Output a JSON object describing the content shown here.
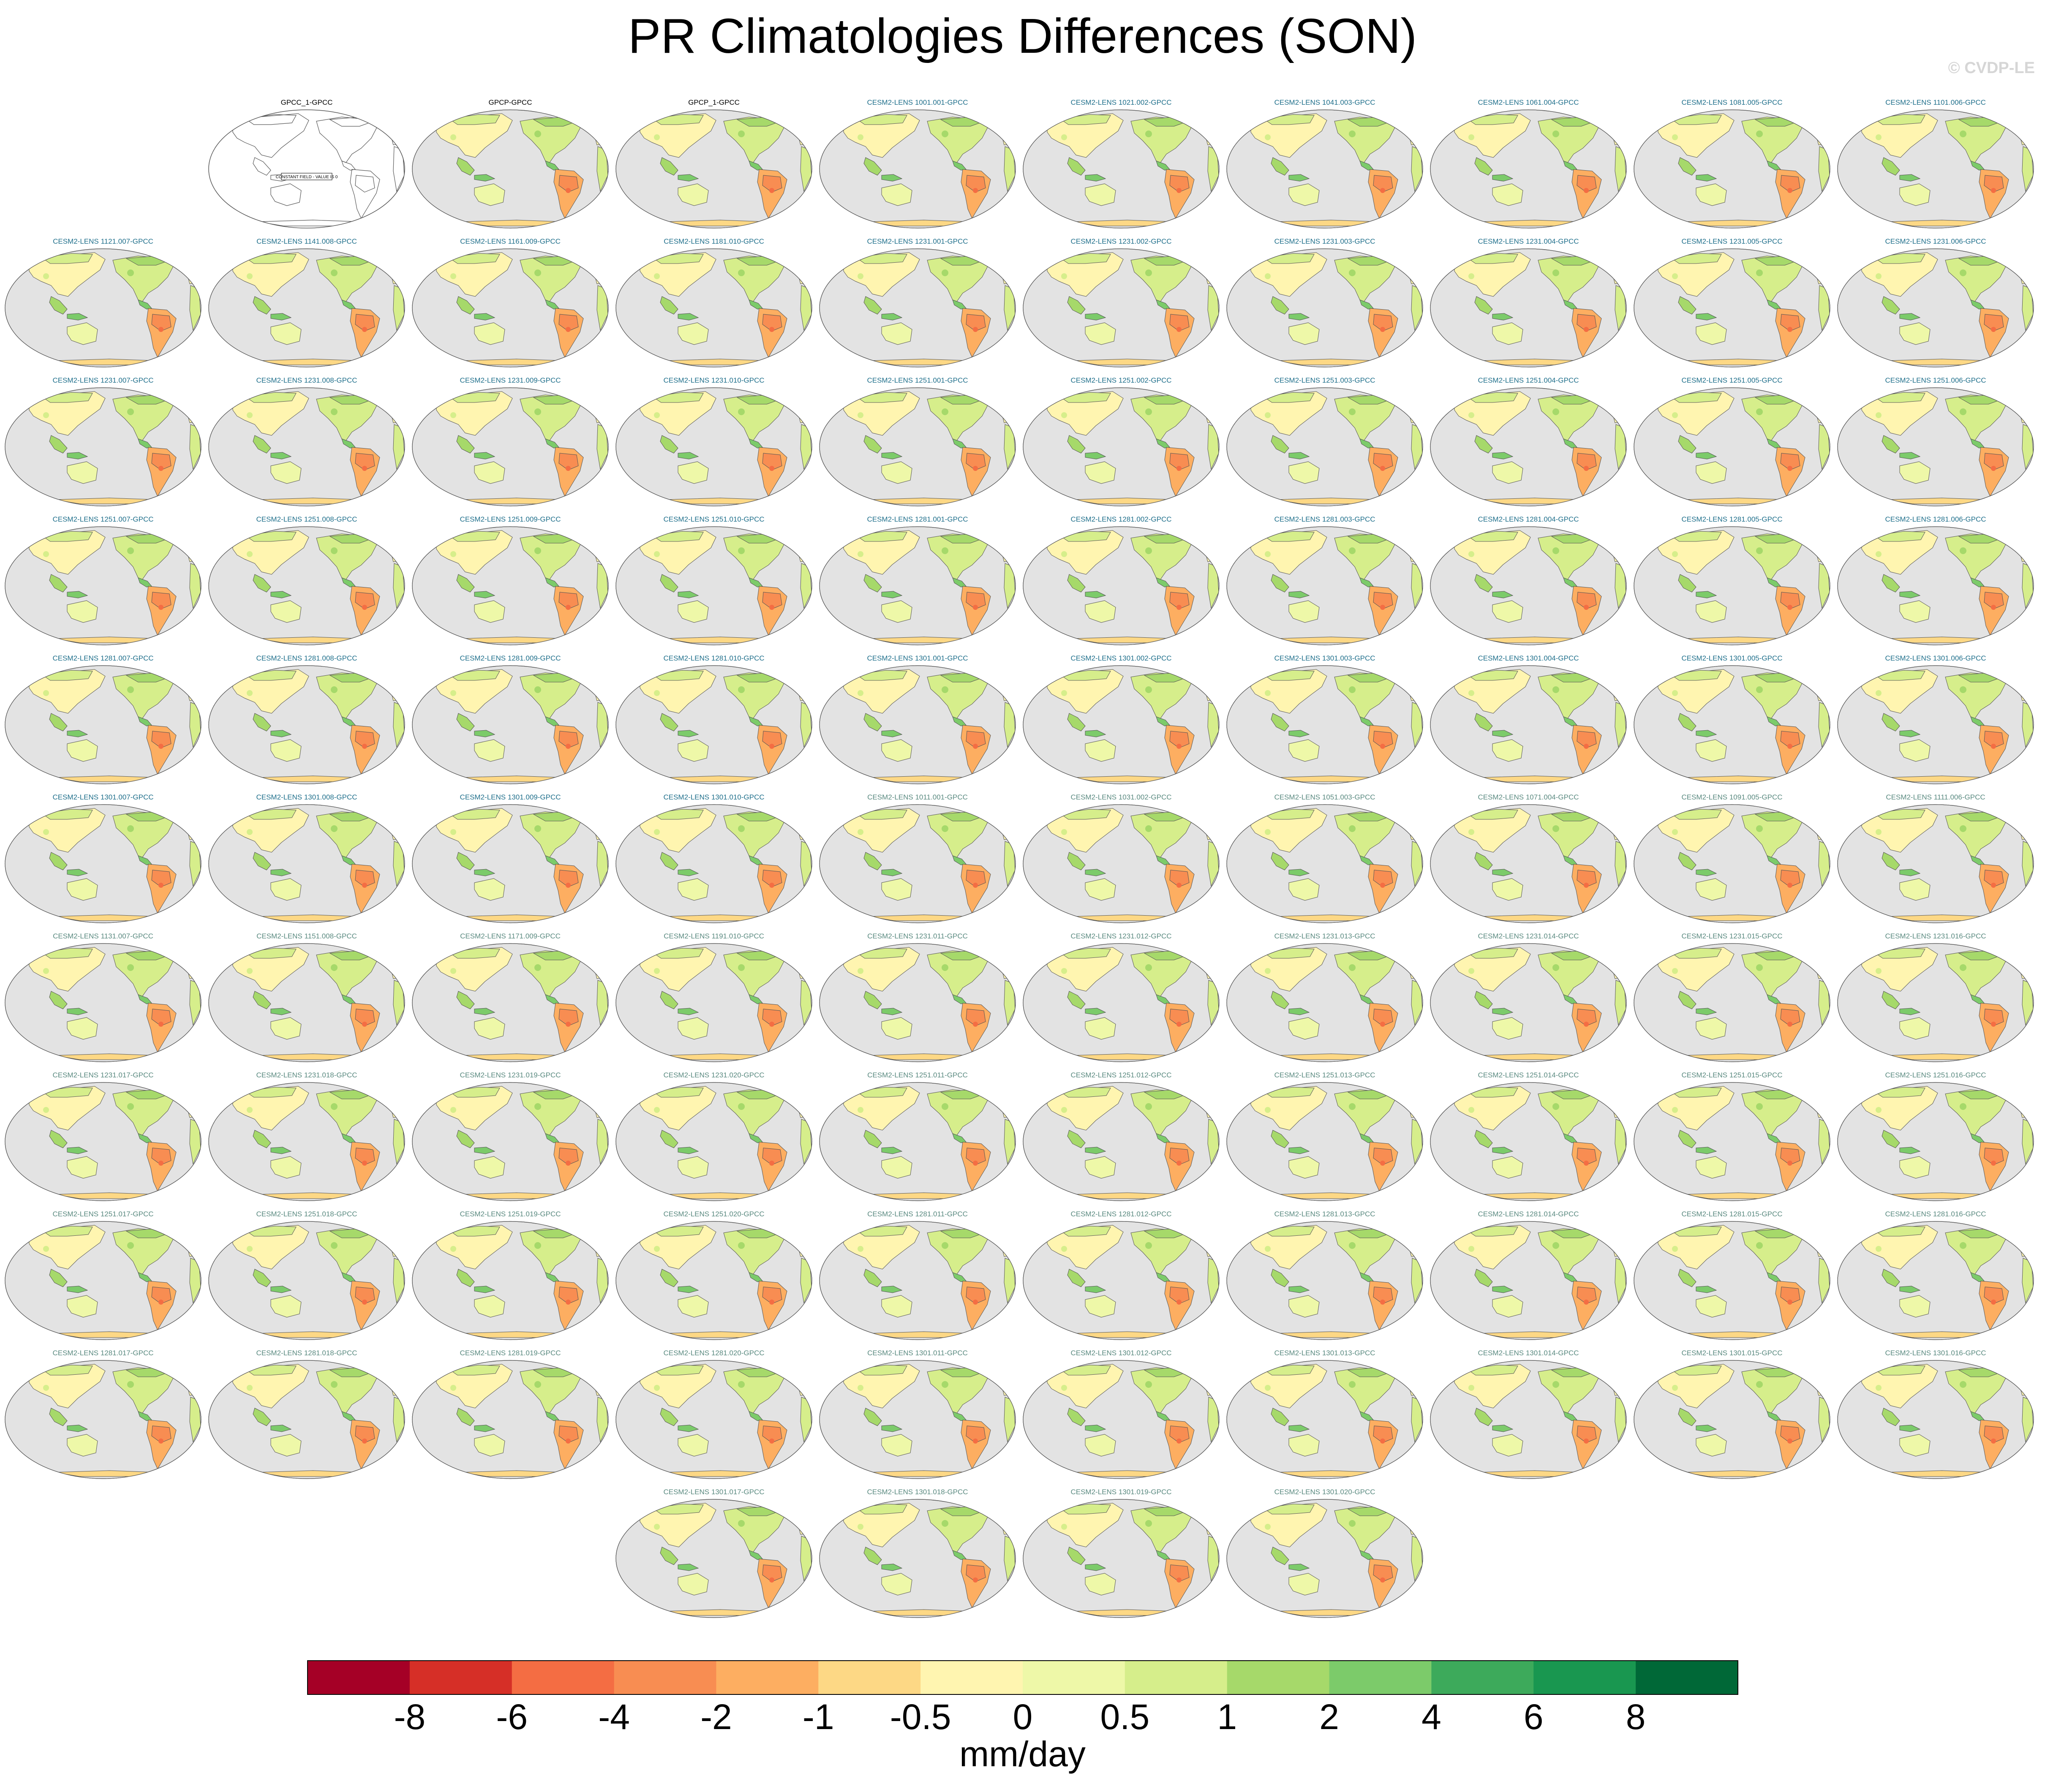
{
  "title": "PR Climatologies Differences (SON)",
  "watermark": "© CVDP-LE",
  "colors": {
    "ocean": "#e3e3e3",
    "coast": "#555555",
    "obs_label": "#000000",
    "group1_label": "#1f6f8b",
    "group2_label": "#5a8a80"
  },
  "chart_data": {
    "type": "heatmap",
    "variable": "PR",
    "season": "SON",
    "title": "PR Climatologies Differences (SON)",
    "map_projection": "Robinson",
    "constant_field_note": "CONSTANT FIELD - VALUE IS 0",
    "colorbar": {
      "units": "mm/day",
      "tick_labels": [
        "-8",
        "-6",
        "-4",
        "-2",
        "-1",
        "-0.5",
        "0",
        "0.5",
        "1",
        "2",
        "4",
        "6",
        "8"
      ],
      "colors": [
        "#a50026",
        "#d62f27",
        "#f46d43",
        "#f88d52",
        "#fdae61",
        "#fdd885",
        "#fff5b0",
        "#eef8a8",
        "#d6ee8b",
        "#a6d96a",
        "#7ccb6a",
        "#3daa5b",
        "#199750",
        "#006837"
      ]
    },
    "panels": [
      {
        "label": "GPCC_1-GPCC",
        "group": "obs",
        "constant": true
      },
      {
        "label": "GPCP-GPCC",
        "group": "obs"
      },
      {
        "label": "GPCP_1-GPCC",
        "group": "obs"
      },
      {
        "label": "CESM2-LENS 1001.001-GPCC",
        "group": "g1"
      },
      {
        "label": "CESM2-LENS 1021.002-GPCC",
        "group": "g1"
      },
      {
        "label": "CESM2-LENS 1041.003-GPCC",
        "group": "g1"
      },
      {
        "label": "CESM2-LENS 1061.004-GPCC",
        "group": "g1"
      },
      {
        "label": "CESM2-LENS 1081.005-GPCC",
        "group": "g1"
      },
      {
        "label": "CESM2-LENS 1101.006-GPCC",
        "group": "g1"
      },
      {
        "label": "CESM2-LENS 1121.007-GPCC",
        "group": "g1"
      },
      {
        "label": "CESM2-LENS 1141.008-GPCC",
        "group": "g1"
      },
      {
        "label": "CESM2-LENS 1161.009-GPCC",
        "group": "g1"
      },
      {
        "label": "CESM2-LENS 1181.010-GPCC",
        "group": "g1"
      },
      {
        "label": "CESM2-LENS 1231.001-GPCC",
        "group": "g1"
      },
      {
        "label": "CESM2-LENS 1231.002-GPCC",
        "group": "g1"
      },
      {
        "label": "CESM2-LENS 1231.003-GPCC",
        "group": "g1"
      },
      {
        "label": "CESM2-LENS 1231.004-GPCC",
        "group": "g1"
      },
      {
        "label": "CESM2-LENS 1231.005-GPCC",
        "group": "g1"
      },
      {
        "label": "CESM2-LENS 1231.006-GPCC",
        "group": "g1"
      },
      {
        "label": "CESM2-LENS 1231.007-GPCC",
        "group": "g1"
      },
      {
        "label": "CESM2-LENS 1231.008-GPCC",
        "group": "g1"
      },
      {
        "label": "CESM2-LENS 1231.009-GPCC",
        "group": "g1"
      },
      {
        "label": "CESM2-LENS 1231.010-GPCC",
        "group": "g1"
      },
      {
        "label": "CESM2-LENS 1251.001-GPCC",
        "group": "g1"
      },
      {
        "label": "CESM2-LENS 1251.002-GPCC",
        "group": "g1"
      },
      {
        "label": "CESM2-LENS 1251.003-GPCC",
        "group": "g1"
      },
      {
        "label": "CESM2-LENS 1251.004-GPCC",
        "group": "g1"
      },
      {
        "label": "CESM2-LENS 1251.005-GPCC",
        "group": "g1"
      },
      {
        "label": "CESM2-LENS 1251.006-GPCC",
        "group": "g1"
      },
      {
        "label": "CESM2-LENS 1251.007-GPCC",
        "group": "g1"
      },
      {
        "label": "CESM2-LENS 1251.008-GPCC",
        "group": "g1"
      },
      {
        "label": "CESM2-LENS 1251.009-GPCC",
        "group": "g1"
      },
      {
        "label": "CESM2-LENS 1251.010-GPCC",
        "group": "g1"
      },
      {
        "label": "CESM2-LENS 1281.001-GPCC",
        "group": "g1"
      },
      {
        "label": "CESM2-LENS 1281.002-GPCC",
        "group": "g1"
      },
      {
        "label": "CESM2-LENS 1281.003-GPCC",
        "group": "g1"
      },
      {
        "label": "CESM2-LENS 1281.004-GPCC",
        "group": "g1"
      },
      {
        "label": "CESM2-LENS 1281.005-GPCC",
        "group": "g1"
      },
      {
        "label": "CESM2-LENS 1281.006-GPCC",
        "group": "g1"
      },
      {
        "label": "CESM2-LENS 1281.007-GPCC",
        "group": "g1"
      },
      {
        "label": "CESM2-LENS 1281.008-GPCC",
        "group": "g1"
      },
      {
        "label": "CESM2-LENS 1281.009-GPCC",
        "group": "g1"
      },
      {
        "label": "CESM2-LENS 1281.010-GPCC",
        "group": "g1"
      },
      {
        "label": "CESM2-LENS 1301.001-GPCC",
        "group": "g1"
      },
      {
        "label": "CESM2-LENS 1301.002-GPCC",
        "group": "g1"
      },
      {
        "label": "CESM2-LENS 1301.003-GPCC",
        "group": "g1"
      },
      {
        "label": "CESM2-LENS 1301.004-GPCC",
        "group": "g1"
      },
      {
        "label": "CESM2-LENS 1301.005-GPCC",
        "group": "g1"
      },
      {
        "label": "CESM2-LENS 1301.006-GPCC",
        "group": "g1"
      },
      {
        "label": "CESM2-LENS 1301.007-GPCC",
        "group": "g1"
      },
      {
        "label": "CESM2-LENS 1301.008-GPCC",
        "group": "g1"
      },
      {
        "label": "CESM2-LENS 1301.009-GPCC",
        "group": "g1"
      },
      {
        "label": "CESM2-LENS 1301.010-GPCC",
        "group": "g1"
      },
      {
        "label": "CESM2-LENS 1011.001-GPCC",
        "group": "g2"
      },
      {
        "label": "CESM2-LENS 1031.002-GPCC",
        "group": "g2"
      },
      {
        "label": "CESM2-LENS 1051.003-GPCC",
        "group": "g2"
      },
      {
        "label": "CESM2-LENS 1071.004-GPCC",
        "group": "g2"
      },
      {
        "label": "CESM2-LENS 1091.005-GPCC",
        "group": "g2"
      },
      {
        "label": "CESM2-LENS 1111.006-GPCC",
        "group": "g2"
      },
      {
        "label": "CESM2-LENS 1131.007-GPCC",
        "group": "g2"
      },
      {
        "label": "CESM2-LENS 1151.008-GPCC",
        "group": "g2"
      },
      {
        "label": "CESM2-LENS 1171.009-GPCC",
        "group": "g2"
      },
      {
        "label": "CESM2-LENS 1191.010-GPCC",
        "group": "g2"
      },
      {
        "label": "CESM2-LENS 1231.011-GPCC",
        "group": "g2"
      },
      {
        "label": "CESM2-LENS 1231.012-GPCC",
        "group": "g2"
      },
      {
        "label": "CESM2-LENS 1231.013-GPCC",
        "group": "g2"
      },
      {
        "label": "CESM2-LENS 1231.014-GPCC",
        "group": "g2"
      },
      {
        "label": "CESM2-LENS 1231.015-GPCC",
        "group": "g2"
      },
      {
        "label": "CESM2-LENS 1231.016-GPCC",
        "group": "g2"
      },
      {
        "label": "CESM2-LENS 1231.017-GPCC",
        "group": "g2"
      },
      {
        "label": "CESM2-LENS 1231.018-GPCC",
        "group": "g2"
      },
      {
        "label": "CESM2-LENS 1231.019-GPCC",
        "group": "g2"
      },
      {
        "label": "CESM2-LENS 1231.020-GPCC",
        "group": "g2"
      },
      {
        "label": "CESM2-LENS 1251.011-GPCC",
        "group": "g2"
      },
      {
        "label": "CESM2-LENS 1251.012-GPCC",
        "group": "g2"
      },
      {
        "label": "CESM2-LENS 1251.013-GPCC",
        "group": "g2"
      },
      {
        "label": "CESM2-LENS 1251.014-GPCC",
        "group": "g2"
      },
      {
        "label": "CESM2-LENS 1251.015-GPCC",
        "group": "g2"
      },
      {
        "label": "CESM2-LENS 1251.016-GPCC",
        "group": "g2"
      },
      {
        "label": "CESM2-LENS 1251.017-GPCC",
        "group": "g2"
      },
      {
        "label": "CESM2-LENS 1251.018-GPCC",
        "group": "g2"
      },
      {
        "label": "CESM2-LENS 1251.019-GPCC",
        "group": "g2"
      },
      {
        "label": "CESM2-LENS 1251.020-GPCC",
        "group": "g2"
      },
      {
        "label": "CESM2-LENS 1281.011-GPCC",
        "group": "g2"
      },
      {
        "label": "CESM2-LENS 1281.012-GPCC",
        "group": "g2"
      },
      {
        "label": "CESM2-LENS 1281.013-GPCC",
        "group": "g2"
      },
      {
        "label": "CESM2-LENS 1281.014-GPCC",
        "group": "g2"
      },
      {
        "label": "CESM2-LENS 1281.015-GPCC",
        "group": "g2"
      },
      {
        "label": "CESM2-LENS 1281.016-GPCC",
        "group": "g2"
      },
      {
        "label": "CESM2-LENS 1281.017-GPCC",
        "group": "g2"
      },
      {
        "label": "CESM2-LENS 1281.018-GPCC",
        "group": "g2"
      },
      {
        "label": "CESM2-LENS 1281.019-GPCC",
        "group": "g2"
      },
      {
        "label": "CESM2-LENS 1281.020-GPCC",
        "group": "g2"
      },
      {
        "label": "CESM2-LENS 1301.011-GPCC",
        "group": "g2"
      },
      {
        "label": "CESM2-LENS 1301.012-GPCC",
        "group": "g2"
      },
      {
        "label": "CESM2-LENS 1301.013-GPCC",
        "group": "g2"
      },
      {
        "label": "CESM2-LENS 1301.014-GPCC",
        "group": "g2"
      },
      {
        "label": "CESM2-LENS 1301.015-GPCC",
        "group": "g2"
      },
      {
        "label": "CESM2-LENS 1301.016-GPCC",
        "group": "g2"
      },
      {
        "label": "CESM2-LENS 1301.017-GPCC",
        "group": "g2"
      },
      {
        "label": "CESM2-LENS 1301.018-GPCC",
        "group": "g2"
      },
      {
        "label": "CESM2-LENS 1301.019-GPCC",
        "group": "g2"
      },
      {
        "label": "CESM2-LENS 1301.020-GPCC",
        "group": "g2"
      }
    ]
  }
}
